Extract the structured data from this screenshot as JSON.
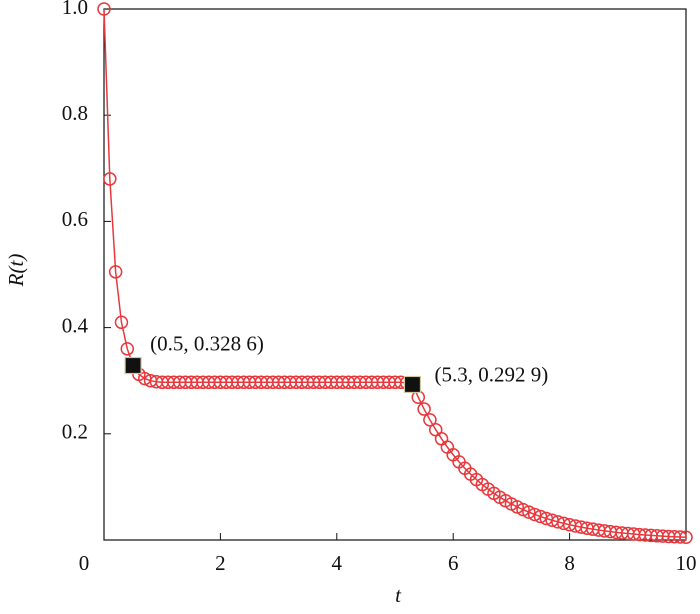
{
  "chart_data": {
    "type": "line",
    "xlabel": "t",
    "ylabel": "R(t)",
    "xlim": [
      0,
      10
    ],
    "xticks": [
      0,
      2,
      4,
      6,
      8,
      10
    ],
    "ylim": [
      0,
      1
    ],
    "yticks": [
      0.2,
      0.4,
      0.6,
      0.8,
      {
        "value": 1,
        "label": "1.0"
      }
    ],
    "series": [
      {
        "color": "#e8383d",
        "x": [
          0,
          0.1,
          0.2,
          0.3,
          0.4,
          0.5,
          0.6,
          0.7,
          0.8,
          0.9,
          1.0,
          1.1,
          1.2,
          1.3,
          1.4,
          1.5,
          1.6,
          1.7,
          1.8,
          1.9,
          2.0,
          2.1,
          2.2,
          2.3,
          2.4,
          2.5,
          2.6,
          2.7,
          2.8,
          2.9,
          3.0,
          3.1,
          3.2,
          3.3,
          3.4,
          3.5,
          3.6,
          3.7,
          3.8,
          3.9,
          4.0,
          4.1,
          4.2,
          4.3,
          4.4,
          4.5,
          4.6,
          4.7,
          4.8,
          4.9,
          5.0,
          5.1,
          5.2,
          5.3,
          5.4,
          5.5,
          5.6,
          5.7,
          5.8,
          5.9,
          6.0,
          6.1,
          6.2,
          6.3,
          6.4,
          6.5,
          6.6,
          6.7,
          6.8,
          6.9,
          7.0,
          7.1,
          7.2,
          7.3,
          7.4,
          7.5,
          7.6,
          7.7,
          7.8,
          7.9,
          8.0,
          8.1,
          8.2,
          8.3,
          8.4,
          8.5,
          8.6,
          8.7,
          8.8,
          8.9,
          9.0,
          9.1,
          9.2,
          9.3,
          9.4,
          9.5,
          9.6,
          9.7,
          9.8,
          9.9,
          10.0
        ],
        "values": [
          1.0,
          0.68,
          0.505,
          0.41,
          0.36,
          0.3286,
          0.312,
          0.304,
          0.3,
          0.298,
          0.297,
          0.297,
          0.297,
          0.297,
          0.297,
          0.297,
          0.297,
          0.297,
          0.297,
          0.297,
          0.297,
          0.297,
          0.297,
          0.297,
          0.297,
          0.297,
          0.297,
          0.297,
          0.297,
          0.297,
          0.297,
          0.297,
          0.297,
          0.297,
          0.297,
          0.297,
          0.297,
          0.297,
          0.297,
          0.297,
          0.297,
          0.297,
          0.297,
          0.297,
          0.297,
          0.297,
          0.297,
          0.297,
          0.297,
          0.297,
          0.297,
          0.297,
          0.296,
          0.2929,
          0.2688,
          0.2466,
          0.2263,
          0.2077,
          0.1906,
          0.1749,
          0.1605,
          0.1472,
          0.1351,
          0.124,
          0.1138,
          0.1044,
          0.0958,
          0.0879,
          0.0806,
          0.074,
          0.0679,
          0.0623,
          0.0572,
          0.0525,
          0.0481,
          0.0442,
          0.0405,
          0.0372,
          0.0341,
          0.0313,
          0.0287,
          0.0264,
          0.0242,
          0.0222,
          0.0204,
          0.0187,
          0.0171,
          0.0157,
          0.0144,
          0.0132,
          0.0122,
          0.0112,
          0.0102,
          0.0094,
          0.0086,
          0.0079,
          0.0073,
          0.0067,
          0.0061,
          0.0056,
          0.0052
        ]
      },
      {
        "color": "#111111",
        "x": [
          0.5,
          5.3
        ],
        "values": [
          0.3286,
          0.2929
        ],
        "value_labels": [
          "(0.5, 0.328 6)",
          "(5.3, 0.292 9)"
        ]
      }
    ]
  }
}
